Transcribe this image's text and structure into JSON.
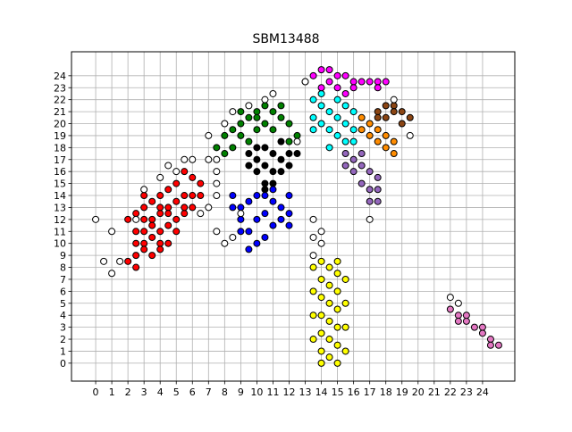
{
  "chart_data": {
    "type": "scatter",
    "title": "SBM13488",
    "xlabel": "",
    "ylabel": "",
    "xlim": [
      -1.5,
      26
    ],
    "ylim": [
      -1.5,
      26
    ],
    "grid": true,
    "x_ticks": [
      "0",
      "1",
      "2",
      "3",
      "4",
      "5",
      "6",
      "7",
      "8",
      "9",
      "10",
      "11",
      "12",
      "13",
      "14",
      "15",
      "16",
      "17",
      "18",
      "19",
      "20",
      "21",
      "22",
      "23",
      "24"
    ],
    "y_ticks": [
      "0",
      "1",
      "2",
      "3",
      "4",
      "5",
      "6",
      "7",
      "8",
      "9",
      "10",
      "11",
      "12",
      "13",
      "14",
      "15",
      "16",
      "17",
      "18",
      "19",
      "20",
      "21",
      "22",
      "23",
      "24"
    ],
    "series": [
      {
        "color": "#ff0000",
        "points": [
          [
            2,
            12
          ],
          [
            2.5,
            12.5
          ],
          [
            3,
            13
          ],
          [
            3.5,
            13.5
          ],
          [
            4,
            14
          ],
          [
            4.5,
            14.5
          ],
          [
            5,
            15
          ],
          [
            3,
            11
          ],
          [
            3.5,
            12
          ],
          [
            4,
            12.5
          ],
          [
            4.5,
            13
          ],
          [
            5,
            13.5
          ],
          [
            5.5,
            14
          ],
          [
            3,
            10
          ],
          [
            3.5,
            10.5
          ],
          [
            4,
            11
          ],
          [
            4.5,
            11.5
          ],
          [
            5,
            12
          ],
          [
            5.5,
            12.5
          ],
          [
            6,
            13
          ],
          [
            2.5,
            9
          ],
          [
            3,
            9.5
          ],
          [
            3.5,
            9
          ],
          [
            4,
            10
          ],
          [
            4.5,
            10
          ],
          [
            2,
            8.5
          ],
          [
            2.5,
            8
          ],
          [
            6,
            15.5
          ],
          [
            6.5,
            15
          ],
          [
            5.5,
            16
          ],
          [
            6,
            14
          ],
          [
            4,
            9.5
          ],
          [
            3,
            12
          ],
          [
            2.5,
            11
          ],
          [
            5,
            11
          ],
          [
            4.5,
            12.5
          ],
          [
            6.5,
            14
          ],
          [
            3.5,
            11.5
          ],
          [
            2.5,
            10
          ],
          [
            4,
            13
          ],
          [
            5.5,
            13
          ],
          [
            3,
            14
          ]
        ]
      },
      {
        "color": "#008000",
        "points": [
          [
            8,
            19
          ],
          [
            8.5,
            19.5
          ],
          [
            9,
            20
          ],
          [
            9.5,
            20.5
          ],
          [
            10,
            21
          ],
          [
            10.5,
            21.5
          ],
          [
            11,
            21
          ],
          [
            11.5,
            20.5
          ],
          [
            12,
            20
          ],
          [
            9,
            19
          ],
          [
            10,
            19.5
          ],
          [
            11,
            19.5
          ],
          [
            12.5,
            19
          ],
          [
            7.5,
            18
          ],
          [
            8.5,
            18
          ],
          [
            9.5,
            18.5
          ],
          [
            10.5,
            20
          ],
          [
            11.5,
            21.5
          ],
          [
            12,
            18.5
          ],
          [
            8,
            17.5
          ],
          [
            10,
            20.5
          ],
          [
            9,
            21
          ]
        ]
      },
      {
        "color": "#000000",
        "points": [
          [
            9.5,
            17.5
          ],
          [
            10,
            17
          ],
          [
            10.5,
            16.5
          ],
          [
            11,
            16
          ],
          [
            11.5,
            17
          ],
          [
            12,
            17.5
          ],
          [
            10,
            16
          ],
          [
            10.5,
            15
          ],
          [
            11,
            15
          ],
          [
            10.5,
            18
          ],
          [
            11.5,
            18.5
          ],
          [
            12.5,
            17.5
          ],
          [
            11,
            17.5
          ],
          [
            10,
            18
          ],
          [
            9.5,
            16.5
          ],
          [
            11.5,
            16
          ],
          [
            10.5,
            14.5
          ],
          [
            12,
            16.5
          ]
        ]
      },
      {
        "color": "#0000ff",
        "points": [
          [
            9,
            13
          ],
          [
            9.5,
            13.5
          ],
          [
            10,
            14
          ],
          [
            10.5,
            14
          ],
          [
            11,
            13.5
          ],
          [
            11.5,
            13
          ],
          [
            12,
            14
          ],
          [
            9,
            12
          ],
          [
            9.5,
            11
          ],
          [
            10,
            10
          ],
          [
            10.5,
            10.5
          ],
          [
            11,
            11.5
          ],
          [
            11.5,
            12
          ],
          [
            12,
            12.5
          ],
          [
            8.5,
            13
          ],
          [
            9.5,
            9.5
          ],
          [
            10,
            12
          ],
          [
            10.5,
            12.5
          ],
          [
            11,
            14.5
          ],
          [
            8.5,
            14
          ],
          [
            9,
            11
          ],
          [
            12,
            11.5
          ]
        ]
      },
      {
        "color": "#00ffff",
        "points": [
          [
            13.5,
            22
          ],
          [
            14,
            21.5
          ],
          [
            14.5,
            21
          ],
          [
            15,
            20.5
          ],
          [
            15.5,
            20
          ],
          [
            16,
            19.5
          ],
          [
            13.5,
            20.5
          ],
          [
            14,
            20
          ],
          [
            14.5,
            19.5
          ],
          [
            15,
            19
          ],
          [
            15.5,
            18.5
          ],
          [
            14,
            22.5
          ],
          [
            15,
            22
          ],
          [
            16,
            21
          ],
          [
            13.5,
            19.5
          ],
          [
            14.5,
            18
          ],
          [
            15.5,
            21.5
          ],
          [
            16,
            18.5
          ]
        ]
      },
      {
        "color": "#ff00ff",
        "points": [
          [
            13,
            23.5
          ],
          [
            13.5,
            24
          ],
          [
            14,
            24.5
          ],
          [
            14.5,
            24.5
          ],
          [
            15,
            24
          ],
          [
            15.5,
            24
          ],
          [
            16,
            23.5
          ],
          [
            16.5,
            23.5
          ],
          [
            17,
            23.5
          ],
          [
            17.5,
            23.5
          ],
          [
            18,
            23.5
          ],
          [
            14,
            23
          ],
          [
            15,
            23
          ],
          [
            16,
            23
          ],
          [
            14.5,
            23.5
          ],
          [
            15.5,
            22.5
          ],
          [
            17.5,
            23
          ]
        ]
      },
      {
        "color": "#8b4513",
        "points": [
          [
            17.5,
            21
          ],
          [
            18,
            21.5
          ],
          [
            18.5,
            21.5
          ],
          [
            19,
            21
          ],
          [
            19.5,
            20.5
          ],
          [
            18,
            20.5
          ],
          [
            18.5,
            21
          ],
          [
            19,
            20
          ],
          [
            17.5,
            20.5
          ]
        ]
      },
      {
        "color": "#ff8c00",
        "points": [
          [
            16.5,
            20.5
          ],
          [
            17,
            20
          ],
          [
            17.5,
            19.5
          ],
          [
            18,
            19
          ],
          [
            18.5,
            18.5
          ],
          [
            18.5,
            17.5
          ],
          [
            17,
            19
          ],
          [
            17.5,
            18.5
          ],
          [
            16.5,
            19.5
          ],
          [
            18,
            18
          ]
        ]
      },
      {
        "color": "#9467bd",
        "points": [
          [
            15.5,
            17.5
          ],
          [
            16,
            17
          ],
          [
            16.5,
            16.5
          ],
          [
            17,
            16
          ],
          [
            17.5,
            15.5
          ],
          [
            17.5,
            14.5
          ],
          [
            17,
            13.5
          ],
          [
            16.5,
            15
          ],
          [
            16,
            16
          ],
          [
            16.5,
            17.5
          ],
          [
            17,
            14.5
          ],
          [
            17.5,
            13.5
          ],
          [
            15.5,
            16.5
          ]
        ]
      },
      {
        "color": "#ffff00",
        "points": [
          [
            14,
            8.5
          ],
          [
            14.5,
            8
          ],
          [
            15,
            7.5
          ],
          [
            14,
            7
          ],
          [
            14.5,
            6.5
          ],
          [
            15,
            6
          ],
          [
            14,
            5.5
          ],
          [
            14.5,
            5
          ],
          [
            15,
            4.5
          ],
          [
            14,
            4
          ],
          [
            14.5,
            3.5
          ],
          [
            15,
            3
          ],
          [
            14,
            2.5
          ],
          [
            14.5,
            2
          ],
          [
            15,
            1.5
          ],
          [
            14,
            1
          ],
          [
            14.5,
            0.5
          ],
          [
            15,
            0
          ],
          [
            13.5,
            6
          ],
          [
            13.5,
            4
          ],
          [
            13.5,
            2
          ],
          [
            15.5,
            5
          ],
          [
            15.5,
            3
          ],
          [
            15.5,
            1
          ],
          [
            15.5,
            7
          ],
          [
            13.5,
            8
          ],
          [
            14,
            0
          ],
          [
            15,
            8.5
          ]
        ]
      },
      {
        "color": "#e377c2",
        "points": [
          [
            22,
            4.5
          ],
          [
            22.5,
            4
          ],
          [
            23,
            3.5
          ],
          [
            23.5,
            3
          ],
          [
            24,
            2.5
          ],
          [
            24.5,
            2
          ],
          [
            24.5,
            1.5
          ],
          [
            23,
            4
          ],
          [
            24,
            3
          ],
          [
            22.5,
            3.5
          ],
          [
            25,
            1.5
          ]
        ]
      },
      {
        "color": "#ffffff",
        "points": [
          [
            0,
            12
          ],
          [
            0.5,
            8.5
          ],
          [
            1,
            7.5
          ],
          [
            1.5,
            8.5
          ],
          [
            1,
            11
          ],
          [
            2.5,
            12
          ],
          [
            3,
            14.5
          ],
          [
            4,
            15.5
          ],
          [
            4.5,
            16.5
          ],
          [
            5,
            16
          ],
          [
            5.5,
            17
          ],
          [
            6,
            17
          ],
          [
            7,
            17
          ],
          [
            7.5,
            17
          ],
          [
            7,
            19
          ],
          [
            8,
            20
          ],
          [
            8.5,
            21
          ],
          [
            9.5,
            21.5
          ],
          [
            10.5,
            22
          ],
          [
            11,
            22.5
          ],
          [
            12.5,
            18.5
          ],
          [
            7.5,
            16
          ],
          [
            7,
            13
          ],
          [
            6.5,
            12.5
          ],
          [
            7.5,
            11
          ],
          [
            7.5,
            14
          ],
          [
            8,
            10
          ],
          [
            8.5,
            10.5
          ],
          [
            9,
            12.5
          ],
          [
            13,
            23.5
          ],
          [
            18.5,
            22
          ],
          [
            19.5,
            19
          ],
          [
            17,
            12
          ],
          [
            13.5,
            12
          ],
          [
            14,
            11
          ],
          [
            14,
            10
          ],
          [
            13.5,
            9
          ],
          [
            13.5,
            10.5
          ],
          [
            22,
            5.5
          ],
          [
            22.5,
            5
          ],
          [
            7.5,
            15
          ]
        ]
      }
    ]
  }
}
